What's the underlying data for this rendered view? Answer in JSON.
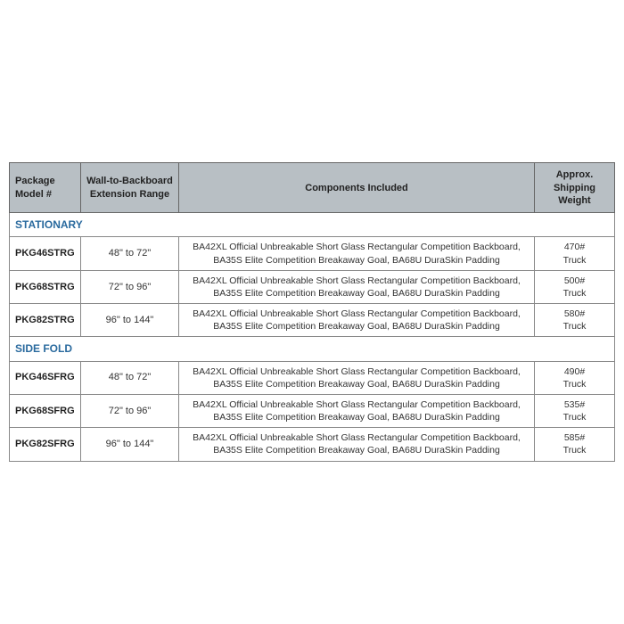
{
  "table": {
    "columns": [
      {
        "label": "Package\nModel #",
        "class": "col-model"
      },
      {
        "label": "Wall-to-Backboard\nExtension Range",
        "class": "col-ext"
      },
      {
        "label": "Components Included",
        "class": "col-comp"
      },
      {
        "label": "Approx.\nShipping Weight",
        "class": "col-weight"
      }
    ],
    "sections": [
      {
        "title": "STATIONARY",
        "rows": [
          {
            "model": "PKG46STRG",
            "extension": "48\" to 72\"",
            "components": "BA42XL Official Unbreakable Short Glass Rectangular Competition Backboard,\nBA35S Elite Competition Breakaway Goal, BA68U DuraSkin Padding",
            "weight": "470#\nTruck"
          },
          {
            "model": "PKG68STRG",
            "extension": "72\" to 96\"",
            "components": "BA42XL Official Unbreakable Short Glass Rectangular Competition Backboard,\nBA35S Elite Competition Breakaway Goal, BA68U DuraSkin Padding",
            "weight": "500#\nTruck"
          },
          {
            "model": "PKG82STRG",
            "extension": "96\" to 144\"",
            "components": "BA42XL Official Unbreakable Short Glass Rectangular Competition Backboard,\nBA35S Elite Competition Breakaway Goal, BA68U DuraSkin Padding",
            "weight": "580#\nTruck"
          }
        ]
      },
      {
        "title": "SIDE FOLD",
        "rows": [
          {
            "model": "PKG46SFRG",
            "extension": "48\" to 72\"",
            "components": "BA42XL Official Unbreakable Short Glass Rectangular Competition Backboard,\nBA35S Elite Competition Breakaway Goal, BA68U DuraSkin Padding",
            "weight": "490#\nTruck"
          },
          {
            "model": "PKG68SFRG",
            "extension": "72\" to 96\"",
            "components": "BA42XL Official Unbreakable Short Glass Rectangular Competition Backboard,\nBA35S Elite Competition Breakaway Goal, BA68U DuraSkin Padding",
            "weight": "535#\nTruck"
          },
          {
            "model": "PKG82SFRG",
            "extension": "96\" to 144\"",
            "components": "BA42XL Official Unbreakable Short Glass Rectangular Competition Backboard,\nBA35S Elite Competition Breakaway Goal, BA68U DuraSkin Padding",
            "weight": "585#\nTruck"
          }
        ]
      }
    ],
    "style": {
      "header_bg": "#b8bfc4",
      "border_color": "#888",
      "section_title_color": "#2a6a9e",
      "body_fontsize": 11,
      "header_fontsize": 11
    }
  }
}
